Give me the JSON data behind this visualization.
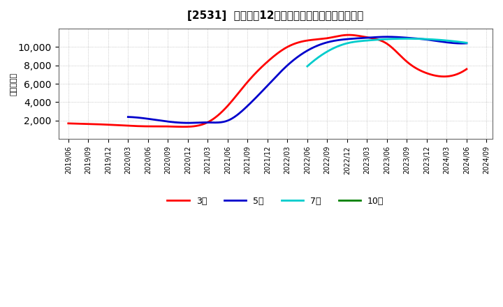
{
  "title": "[2531]  経常利益12か月移動合計の標準偏差の推移",
  "ylabel": "（百万円）",
  "background_color": "#ffffff",
  "plot_bg_color": "#ffffff",
  "grid_color": "#aaaaaa",
  "ylim": [
    0,
    12000
  ],
  "yticks": [
    2000,
    4000,
    6000,
    8000,
    10000
  ],
  "series": {
    "3year": {
      "color": "#ff0000",
      "label": "3年",
      "x": [
        0,
        1,
        2,
        3,
        4,
        5,
        6,
        7,
        8,
        9,
        10,
        11,
        12,
        13,
        14,
        15,
        16,
        17,
        18,
        19,
        20
      ],
      "y": [
        1700,
        1640,
        1560,
        1450,
        1380,
        1370,
        1340,
        1820,
        3600,
        6200,
        8400,
        10000,
        10700,
        10950,
        11300,
        11050,
        10350,
        8400,
        7150,
        6800,
        7600
      ]
    },
    "5year": {
      "color": "#0000cc",
      "label": "5年",
      "x": [
        3,
        4,
        5,
        6,
        7,
        8,
        9,
        10,
        11,
        12,
        13,
        14,
        15,
        16,
        17,
        18,
        19,
        20
      ],
      "y": [
        2400,
        2200,
        1900,
        1750,
        1800,
        2000,
        3600,
        5800,
        8000,
        9600,
        10500,
        10850,
        11000,
        11100,
        11000,
        10800,
        10500,
        10400
      ]
    },
    "7year": {
      "color": "#00cccc",
      "label": "7年",
      "x": [
        12,
        13,
        14,
        15,
        16,
        17,
        18,
        19,
        20
      ],
      "y": [
        7900,
        9500,
        10400,
        10700,
        10850,
        10900,
        10850,
        10700,
        10450
      ]
    },
    "10year": {
      "color": "#008000",
      "label": "10年",
      "x": [],
      "y": []
    }
  },
  "legend_items": [
    {
      "label": "3年",
      "color": "#ff0000"
    },
    {
      "label": "5年",
      "color": "#0000cc"
    },
    {
      "label": "7年",
      "color": "#00cccc"
    },
    {
      "label": "10年",
      "color": "#008000"
    }
  ],
  "xtick_labels": [
    "2019/06",
    "2019/09",
    "2019/12",
    "2020/03",
    "2020/06",
    "2020/09",
    "2020/12",
    "2021/03",
    "2021/06",
    "2021/09",
    "2021/12",
    "2022/03",
    "2022/06",
    "2022/09",
    "2022/12",
    "2023/03",
    "2023/06",
    "2023/09",
    "2023/12",
    "2024/03",
    "2024/06",
    "2024/09"
  ]
}
